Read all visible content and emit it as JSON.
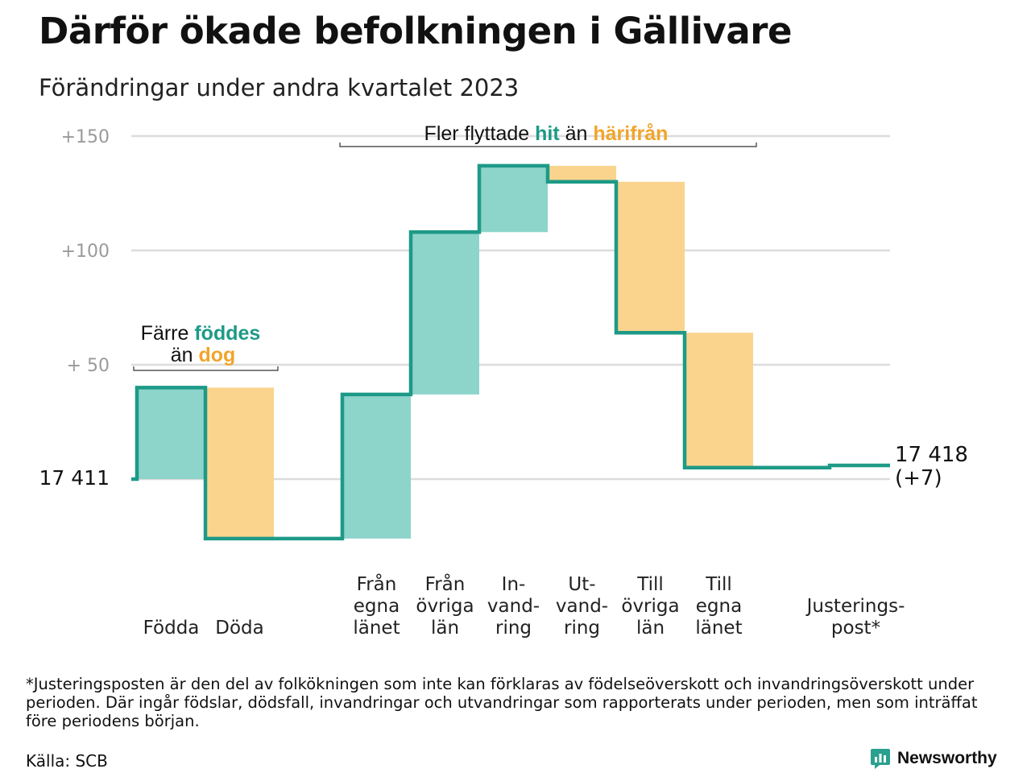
{
  "header": {
    "title": "Därför ökade befolkningen i Gällivare",
    "subtitle": "Förändringar under andra kvartalet 2023"
  },
  "colors": {
    "teal_line": "#1d9a87",
    "teal_fill": "#8dd4cb",
    "orange_fill": "#fad48d",
    "orange_text": "#f0a52c",
    "grid": "#dcdcdc",
    "axis_text": "#9a9a9a",
    "brand": "#2aa08e"
  },
  "annotations": {
    "left": {
      "line1_a": "Färre ",
      "line1_b": "föddes",
      "line2_a": "än ",
      "line2_b": "dog"
    },
    "top": {
      "part1": "Fler flyttade ",
      "part2": "hit",
      "part3": " än ",
      "part4": "härifrån"
    }
  },
  "chart_data": {
    "type": "waterfall",
    "y_ticks": [
      {
        "value": 0,
        "label": "17  411"
      },
      {
        "value": 50,
        "label": "+  50"
      },
      {
        "value": 100,
        "label": "+100"
      },
      {
        "value": 150,
        "label": "+150"
      }
    ],
    "ylim": [
      -30,
      155
    ],
    "start_value": 17411,
    "end_label": [
      "17 418",
      "(+7)"
    ],
    "categories": [
      {
        "label": [
          "Födda"
        ],
        "change": 40,
        "kind": "in"
      },
      {
        "label": [
          "Döda"
        ],
        "change": -66,
        "kind": "out"
      },
      {
        "label": [],
        "change": 0,
        "kind": "gap"
      },
      {
        "label": [
          "Från",
          "egna",
          "länet"
        ],
        "change": 63,
        "kind": "in"
      },
      {
        "label": [
          "Från",
          "övriga",
          "län"
        ],
        "change": 71,
        "kind": "in"
      },
      {
        "label": [
          "In-",
          "vand-",
          "ring"
        ],
        "change": 29,
        "kind": "in"
      },
      {
        "label": [
          "Ut-",
          "vand-",
          "ring"
        ],
        "change": -7,
        "kind": "out"
      },
      {
        "label": [
          "Till",
          "övriga",
          "län"
        ],
        "change": -66,
        "kind": "out"
      },
      {
        "label": [
          "Till",
          "egna",
          "länet"
        ],
        "change": -59,
        "kind": "out"
      },
      {
        "label": [],
        "change": 0,
        "kind": "gap"
      },
      {
        "label": [
          "Justerings-",
          "post*"
        ],
        "change": 1,
        "kind": "adjust"
      }
    ]
  },
  "footer": {
    "note": "*Justeringsposten är den del av folkökningen som inte kan förklaras av födelseöverskott och invandringsöverskott under perioden. Där ingår födslar, dödsfall, invandringar och utvandringar som rapporterats under perioden, men som inträffat före periodens början.",
    "source": "Källa: SCB",
    "brand": "Newsworthy"
  }
}
